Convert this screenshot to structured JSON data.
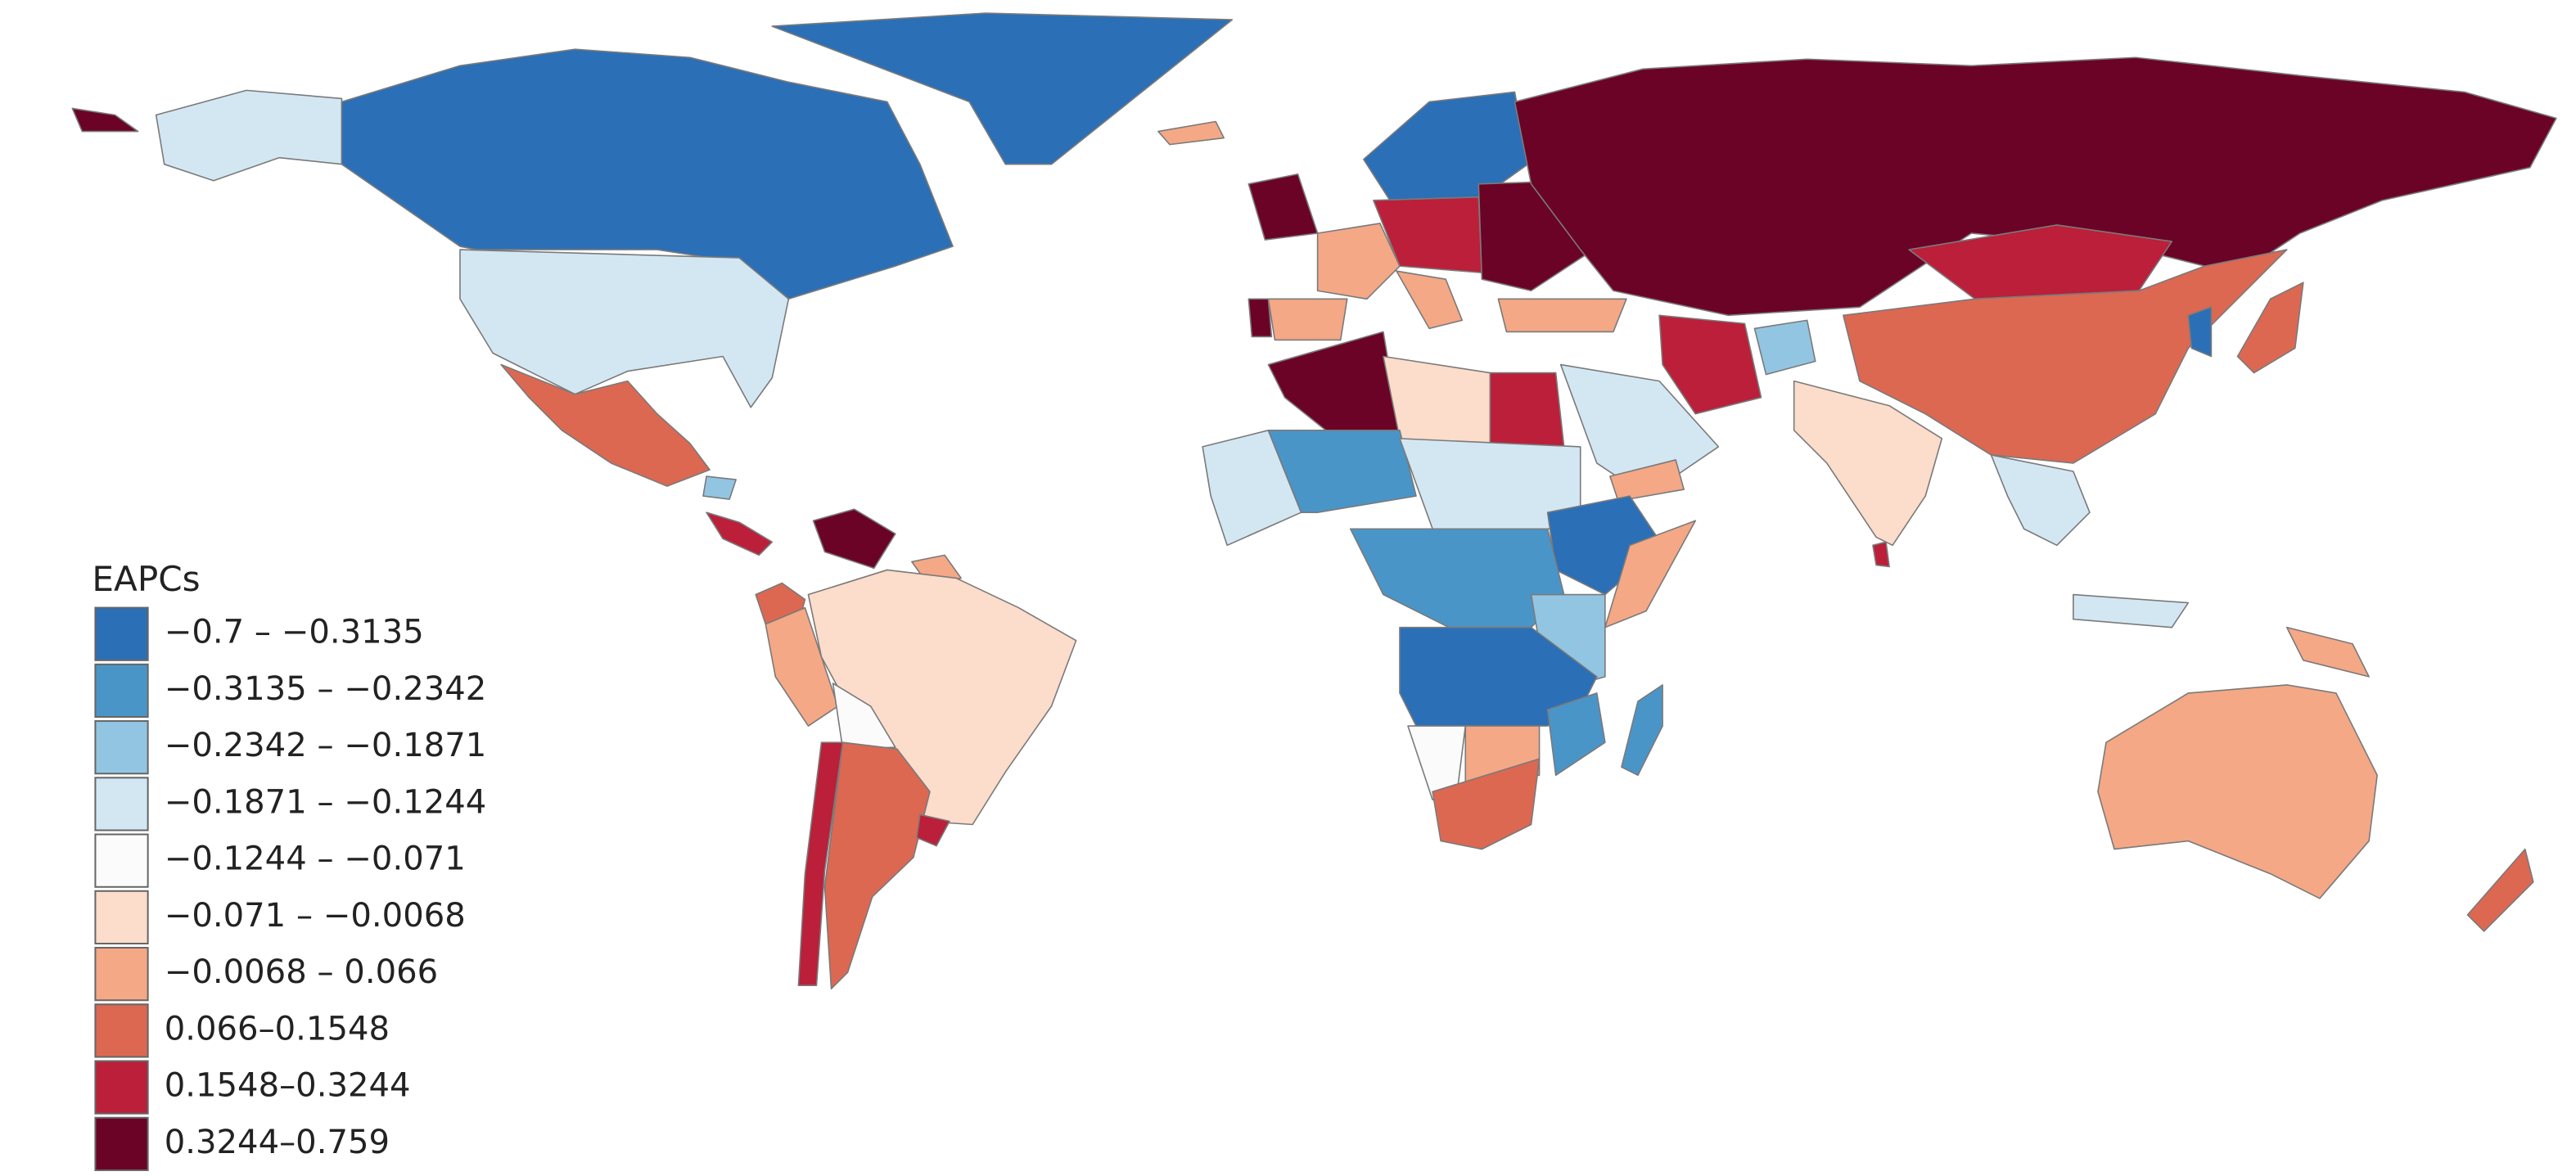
{
  "legend": {
    "title": "EAPCs",
    "items": [
      {
        "label": "−0.7 – −0.3135",
        "color": "#2b6fb6"
      },
      {
        "label": "−0.3135 – −0.2342",
        "color": "#4a95c8"
      },
      {
        "label": "−0.2342 – −0.1871",
        "color": "#92c5e2"
      },
      {
        "label": "−0.1871 – −0.1244",
        "color": "#d3e7f3"
      },
      {
        "label": "−0.1244 – −0.071",
        "color": "#fbfbfb"
      },
      {
        "label": "−0.071 – −0.0068",
        "color": "#fcdcca"
      },
      {
        "label": "−0.0068 – 0.066",
        "color": "#f4a886"
      },
      {
        "label": "0.066–0.1548",
        "color": "#dc6852"
      },
      {
        "label": "0.1548–0.3244",
        "color": "#bb1f3a"
      },
      {
        "label": "0.3244–0.759",
        "color": "#6b0326"
      }
    ]
  }
}
